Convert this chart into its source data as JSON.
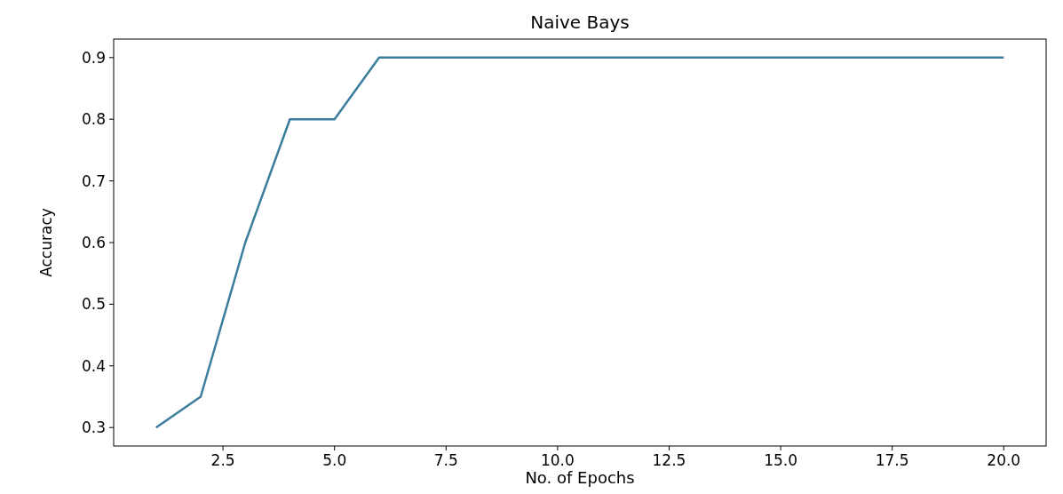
{
  "chart_data": {
    "type": "line",
    "title": "Naive Bays",
    "xlabel": "No. of Epochs",
    "ylabel": "Accuracy",
    "x": [
      1,
      2,
      3,
      4,
      5,
      6,
      7,
      8,
      9,
      10,
      11,
      12,
      13,
      14,
      15,
      16,
      17,
      18,
      19,
      20
    ],
    "series": [
      {
        "color": "#3b7d9c",
        "values": [
          0.3,
          0.35,
          0.6,
          0.8,
          0.8,
          0.9,
          0.9,
          0.9,
          0.9,
          0.9,
          0.9,
          0.9,
          0.9,
          0.9,
          0.9,
          0.9,
          0.9,
          0.9,
          0.9,
          0.9
        ]
      }
    ],
    "xlim": [
      0.05,
      20.95
    ],
    "ylim": [
      0.27,
      0.93
    ],
    "xticks": [
      2.5,
      {
        "value": 5,
        "label": "5.0"
      },
      7.5,
      {
        "value": 10,
        "label": "10.0"
      },
      12.5,
      {
        "value": 15,
        "label": "15.0"
      },
      17.5,
      {
        "value": 20,
        "label": "20.0"
      }
    ],
    "yticks": [
      0.3,
      0.4,
      0.5,
      0.6,
      0.7,
      0.8,
      0.9
    ],
    "grid": false,
    "marker": "none",
    "line_style": "solid"
  }
}
